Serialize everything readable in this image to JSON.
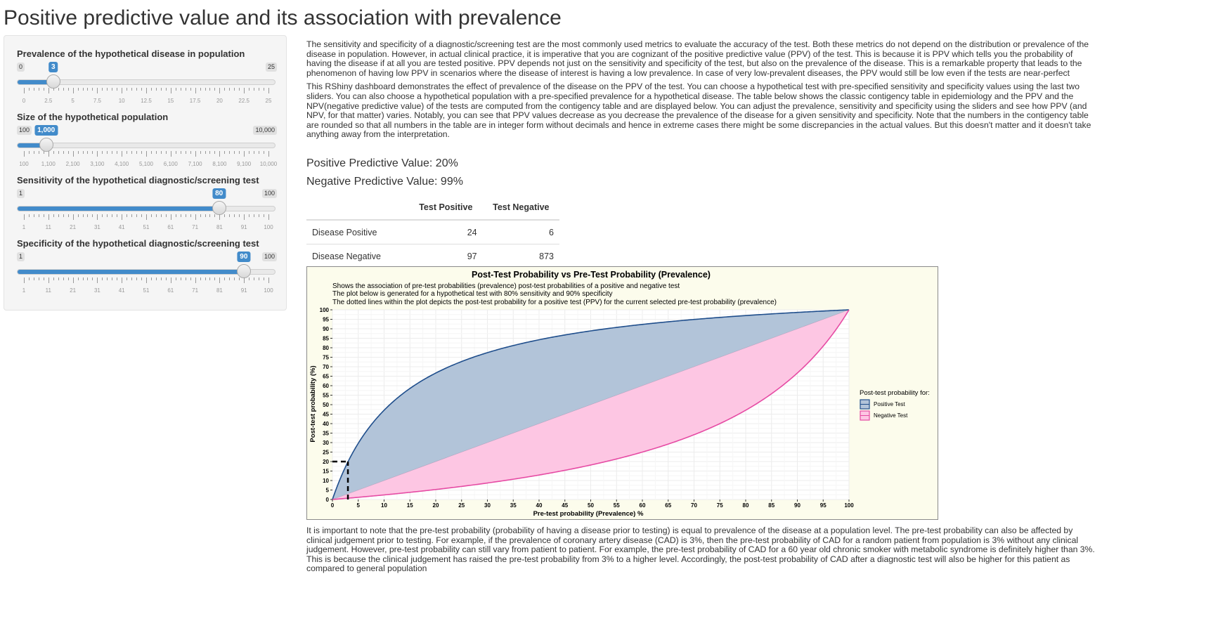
{
  "page": {
    "title": "Positive predictive value and its association with prevalence"
  },
  "sliders": [
    {
      "label": "Prevalence of the hypothetical disease in population",
      "min": 0,
      "max": 25,
      "value": 3,
      "min_label": "0",
      "max_label": "25",
      "value_label": "3",
      "ticks": [
        "0",
        "2.5",
        "5",
        "7.5",
        "10",
        "12.5",
        "15",
        "17.5",
        "20",
        "22.5",
        "25"
      ]
    },
    {
      "label": "Size of the hypothetical population",
      "min": 100,
      "max": 10000,
      "value": 1000,
      "min_label": "100",
      "max_label": "10,000",
      "value_label": "1,000",
      "ticks": [
        "100",
        "1,100",
        "2,100",
        "3,100",
        "4,100",
        "5,100",
        "6,100",
        "7,100",
        "8,100",
        "9,100",
        "10,000"
      ]
    },
    {
      "label": "Sensitivity of the hypothetical diagnostic/screening test",
      "min": 1,
      "max": 100,
      "value": 80,
      "min_label": "1",
      "max_label": "100",
      "value_label": "80",
      "ticks": [
        "1",
        "11",
        "21",
        "31",
        "41",
        "51",
        "61",
        "71",
        "81",
        "91",
        "100"
      ]
    },
    {
      "label": "Specificity of the hypothetical diagnostic/screening test",
      "min": 1,
      "max": 100,
      "value": 90,
      "min_label": "1",
      "max_label": "100",
      "value_label": "90",
      "ticks": [
        "1",
        "11",
        "21",
        "31",
        "41",
        "51",
        "61",
        "71",
        "81",
        "91",
        "100"
      ]
    }
  ],
  "intro": {
    "p1": "The sensitivity and specificity of a diagnostic/screening test are the most commonly used metrics to evaluate the accuracy of the test. Both these metrics do not depend on the distribution or prevalence of the disease in population. However, in actual clinical practice, it is imperative that you are cognizant of the positive predictive value (PPV) of the test. This is because it is PPV which tells you the probability of having the disease if at all you are tested positive. PPV depends not just on the sensitivity and specificity of the test, but also on the prevalence of the disease. This is a remarkable property that leads to the phenomenon of having low PPV in scenarios where the disease of interest is having a low prevalence. In case of very low-prevalent diseases, the PPV would still be low even if the tests are near-perfect",
    "p2": "This RShiny dashboard demonstrates the effect of prevalence of the disease on the PPV of the test. You can choose a hypothetical test with pre-specified sensitivity and specificity values using the last two sliders. You can also choose a hypothetical population with a pre-specified prevalence for a hypothetical disease. The table below shows the classic contigency table in epidemiology and the PPV and the NPV(negative predictive value) of the tests are computed from the contigency table and are displayed below. You can adjust the prevalence, sensitivity and specificity using the sliders and see how PPV (and NPV, for that matter) varies. Notably, you can see that PPV values decrease as you decrease the prevalence of the disease for a given sensitivity and specificity. Note that the numbers in the contigency table are rounded so that all numbers in the table are in integer form without decimals and hence in extreme cases there might be some discrepancies in the actual values. But this doesn't matter and it doesn't take anything away from the interpretation."
  },
  "metrics": {
    "ppv": "Positive Predictive Value: 20%",
    "npv": "Negative Predictive Value: 99%"
  },
  "table": {
    "headers": [
      "",
      "Test Positive",
      "Test Negative"
    ],
    "rows": [
      [
        "Disease Positive",
        "24",
        "6"
      ],
      [
        "Disease Negative",
        "97",
        "873"
      ]
    ]
  },
  "chart_data": {
    "type": "area",
    "title": "Post-Test Probability vs Pre-Test Probability (Prevalence)",
    "subtitle_lines": [
      "Shows the association of pre-test probabilities (prevalence) post-test probabilities of a positive and negative test",
      "The plot below is generated for a hypothetical test with 80% sensitivity and 90% specificity",
      "The dotted lines within the plot depicts the post-test probability for a positive test (PPV) for the current selected pre-test probability (prevalence)"
    ],
    "xlabel": "Pre-test probability (Prevalence) %",
    "ylabel": "Post-test probability (%)",
    "xlim": [
      0,
      100
    ],
    "ylim": [
      0,
      100
    ],
    "xticks": [
      0,
      5,
      10,
      15,
      20,
      25,
      30,
      35,
      40,
      45,
      50,
      55,
      60,
      65,
      70,
      75,
      80,
      85,
      90,
      95,
      100
    ],
    "yticks": [
      0,
      5,
      10,
      15,
      20,
      25,
      30,
      35,
      40,
      45,
      50,
      55,
      60,
      65,
      70,
      75,
      80,
      85,
      90,
      95,
      100
    ],
    "sensitivity": 0.8,
    "specificity": 0.9,
    "selected_prevalence": 3,
    "selected_ppv": 20,
    "legend_title": "Post-test probability for:",
    "legend_position": "right",
    "series": [
      {
        "name": "Positive Test",
        "line_color": "#1f4e8c",
        "fill_color": "#b2c4d9",
        "x": [
          0,
          1,
          2,
          3,
          5,
          7.5,
          10,
          15,
          20,
          25,
          30,
          40,
          50,
          60,
          70,
          80,
          90,
          100
        ],
        "y": [
          0,
          7.5,
          14,
          19.8,
          29.6,
          39.3,
          47.1,
          58.5,
          66.7,
          72.7,
          77.4,
          84.2,
          88.9,
          92.3,
          94.9,
          97,
          98.6,
          100
        ]
      },
      {
        "name": "Negative Test",
        "line_color": "#e64ba4",
        "fill_color": "#fdc6e3",
        "x": [
          0,
          5,
          10,
          20,
          30,
          40,
          50,
          60,
          70,
          80,
          90,
          95,
          100
        ],
        "y": [
          0,
          1.2,
          2.4,
          5.3,
          8.7,
          12.9,
          18.2,
          25,
          34.1,
          47.1,
          66.7,
          80.9,
          100
        ]
      }
    ],
    "reference_line": {
      "x": [
        0,
        100
      ],
      "y": [
        0,
        100
      ]
    },
    "plot_background": "#fcfcec",
    "grid": true
  },
  "outro": {
    "p1": "It is important to note that the pre-test probability (probability of having a disease prior to testing) is equal to prevalence of the disease at a population level. The pre-test probability can also be affected by clinical judgement prior to testing. For example, if the prevalence of coronary artery disease (CAD) is 3%, then the pre-test probability of CAD for a random patient from population is 3% without any clinical judgement. However, pre-test probability can still vary from patient to patient. For example, the pre-test probability of CAD for a 60 year old chronic smoker with metabolic syndrome is definitely higher than 3%. This is because the clinical judgement has raised the pre-test probability from 3% to a higher level. Accordingly, the post-test probability of CAD after a diagnostic test will also be higher for this patient as compared to general population"
  }
}
